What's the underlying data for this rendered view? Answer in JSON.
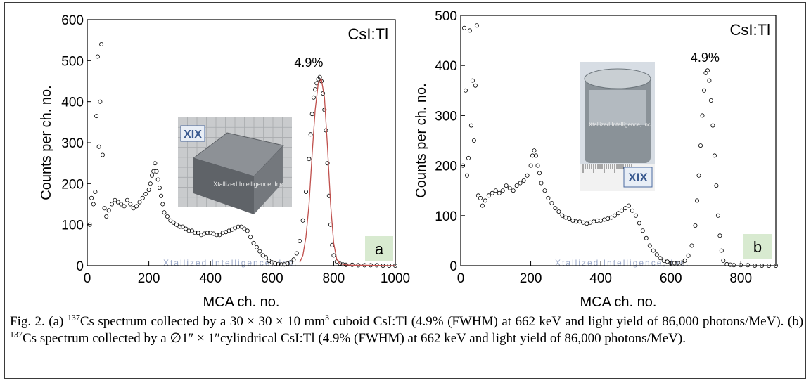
{
  "chart_data": [
    {
      "type": "scatter",
      "panel_label": "a",
      "annotation": "CsI:Tl",
      "peak_label": "4.9%",
      "inset_watermark": "Xtallized Intelligence, Inc.",
      "inset_logo": "XIX",
      "bottom_watermark": "Xtallized Intelligence, Inc.",
      "xlabel": "MCA ch. no.",
      "ylabel": "Counts per ch. no.",
      "xlim": [
        0,
        1000
      ],
      "ylim": [
        0,
        600
      ],
      "xticks": [
        "0",
        "200",
        "400",
        "600",
        "800",
        "1000"
      ],
      "yticks": [
        "0",
        "100",
        "200",
        "300",
        "400",
        "500",
        "600"
      ],
      "series": [
        {
          "marker": "open-circle",
          "x": [
            8,
            14,
            20,
            26,
            30,
            34,
            38,
            42,
            46,
            50,
            56,
            62,
            70,
            80,
            90,
            100,
            110,
            120,
            130,
            140,
            150,
            160,
            170,
            180,
            190,
            200,
            205,
            210,
            215,
            220,
            225,
            230,
            235,
            240,
            245,
            250,
            260,
            270,
            280,
            290,
            300,
            310,
            320,
            330,
            340,
            350,
            360,
            370,
            380,
            390,
            400,
            410,
            420,
            430,
            440,
            450,
            460,
            470,
            480,
            490,
            500,
            510,
            520,
            530,
            540,
            550,
            560,
            570,
            580,
            590,
            600,
            610,
            620,
            630,
            640,
            650,
            660,
            670,
            680,
            690,
            700,
            710,
            720,
            725,
            730,
            735,
            740,
            745,
            750,
            755,
            760,
            765,
            770,
            775,
            780,
            785,
            790,
            795,
            800,
            810,
            820,
            830,
            840,
            860,
            880,
            900,
            920,
            940,
            960,
            980,
            1000
          ],
          "y": [
            100,
            165,
            150,
            180,
            365,
            510,
            290,
            400,
            540,
            270,
            140,
            120,
            135,
            150,
            160,
            155,
            150,
            145,
            160,
            150,
            140,
            145,
            155,
            165,
            175,
            185,
            200,
            220,
            230,
            250,
            230,
            210,
            190,
            170,
            150,
            130,
            120,
            110,
            105,
            100,
            95,
            95,
            90,
            85,
            85,
            80,
            80,
            75,
            78,
            80,
            80,
            78,
            75,
            75,
            80,
            82,
            85,
            88,
            92,
            95,
            95,
            90,
            85,
            70,
            55,
            45,
            35,
            25,
            20,
            12,
            8,
            5,
            4,
            3,
            3,
            5,
            8,
            15,
            30,
            60,
            110,
            180,
            260,
            320,
            370,
            410,
            430,
            445,
            455,
            460,
            450,
            420,
            380,
            330,
            250,
            170,
            100,
            50,
            25,
            10,
            5,
            3,
            2,
            2,
            1,
            1,
            1,
            1,
            0,
            0,
            0
          ]
        },
        {
          "marker": "fit-line",
          "color": "#c0504d",
          "x": [
            690,
            700,
            710,
            720,
            730,
            740,
            750,
            760,
            770,
            780,
            790,
            800,
            810,
            820,
            840,
            860,
            900,
            1000
          ],
          "y": [
            8,
            25,
            70,
            150,
            270,
            380,
            445,
            455,
            410,
            290,
            150,
            55,
            15,
            5,
            2,
            1,
            1,
            0
          ]
        }
      ]
    },
    {
      "type": "scatter",
      "panel_label": "b",
      "annotation": "CsI:Tl",
      "peak_label": "4.9%",
      "inset_watermark": "Xtallized Intelligence, Inc.",
      "inset_logo": "XIX",
      "bottom_watermark": "Xtallized Intelligence, Inc.",
      "xlabel": "MCA ch. no.",
      "ylabel": "Counts per ch. no.",
      "xlim": [
        0,
        900
      ],
      "ylim": [
        0,
        500
      ],
      "xticks": [
        "0",
        "200",
        "400",
        "600",
        "800"
      ],
      "yticks": [
        "0",
        "100",
        "200",
        "300",
        "400",
        "500"
      ],
      "series": [
        {
          "marker": "open-circle",
          "x": [
            6,
            10,
            14,
            18,
            22,
            26,
            30,
            34,
            38,
            42,
            46,
            50,
            56,
            62,
            70,
            80,
            90,
            100,
            110,
            120,
            130,
            140,
            150,
            160,
            170,
            180,
            190,
            200,
            205,
            210,
            215,
            220,
            225,
            230,
            240,
            250,
            260,
            270,
            280,
            290,
            300,
            310,
            320,
            330,
            340,
            350,
            360,
            370,
            380,
            390,
            400,
            410,
            420,
            430,
            440,
            450,
            460,
            470,
            480,
            490,
            500,
            510,
            520,
            530,
            540,
            550,
            560,
            570,
            580,
            590,
            600,
            610,
            620,
            630,
            640,
            650,
            660,
            670,
            675,
            680,
            685,
            690,
            695,
            700,
            705,
            710,
            715,
            720,
            725,
            730,
            735,
            740,
            745,
            750,
            760,
            770,
            780,
            800,
            820,
            840,
            860,
            880,
            900
          ],
          "y": [
            200,
            475,
            350,
            180,
            215,
            470,
            280,
            370,
            250,
            360,
            480,
            140,
            135,
            120,
            130,
            140,
            145,
            150,
            145,
            150,
            160,
            155,
            150,
            160,
            165,
            170,
            180,
            200,
            220,
            230,
            220,
            200,
            185,
            165,
            150,
            135,
            125,
            115,
            108,
            100,
            96,
            94,
            90,
            88,
            88,
            86,
            84,
            86,
            88,
            90,
            90,
            92,
            94,
            96,
            100,
            105,
            110,
            115,
            120,
            110,
            100,
            85,
            70,
            55,
            40,
            30,
            22,
            15,
            10,
            8,
            5,
            5,
            5,
            6,
            10,
            20,
            40,
            80,
            130,
            180,
            240,
            300,
            350,
            385,
            390,
            370,
            330,
            280,
            220,
            160,
            100,
            60,
            30,
            10,
            3,
            2,
            1,
            1,
            1,
            0,
            0,
            0,
            0
          ]
        }
      ]
    }
  ],
  "caption": {
    "fig_label": "Fig. 2.",
    "a_prefix": "(a) ",
    "sup": "137",
    "a_mid": "Cs spectrum collected by a 30 × 30 × 10 mm",
    "sup3": "3",
    "a_rest": " cuboid CsI:Tl (4.9% (FWHM) at 662 keV and light yield of 86,000 photons/MeV).",
    "b_prefix": " (b) ",
    "b_rest": "Cs spectrum collected by a ∅1″ × 1″cylindrical CsI:Tl (4.9% (FWHM) at 662 keV and light yield of 86,000 photons/MeV)."
  },
  "colors": {
    "marker_stroke": "#000000",
    "fit_line": "#c0504d",
    "panel_label_bg": "#d8ead0",
    "watermark": "#9aa8c8"
  }
}
